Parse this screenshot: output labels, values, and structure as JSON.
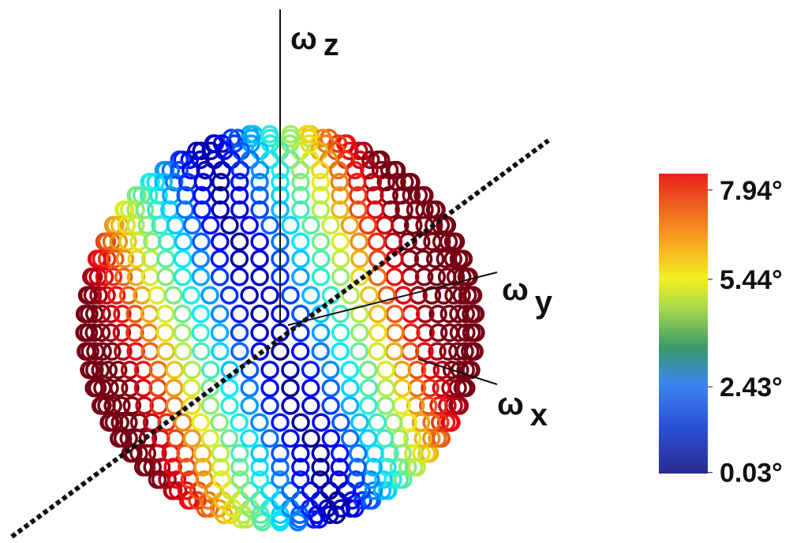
{
  "axes": [
    {
      "symbol": "ω",
      "subscript": "z"
    },
    {
      "symbol": "ω",
      "subscript": "y"
    },
    {
      "symbol": "ω",
      "subscript": "x"
    }
  ],
  "colorbar": {
    "lim": [
      0,
      8.4
    ],
    "ticks": [
      {
        "value": 7.94,
        "label": "7.94°"
      },
      {
        "value": 5.44,
        "label": "5.44°"
      },
      {
        "value": 2.43,
        "label": "2.43°"
      },
      {
        "value": 0.03,
        "label": "0.03°"
      }
    ]
  }
}
